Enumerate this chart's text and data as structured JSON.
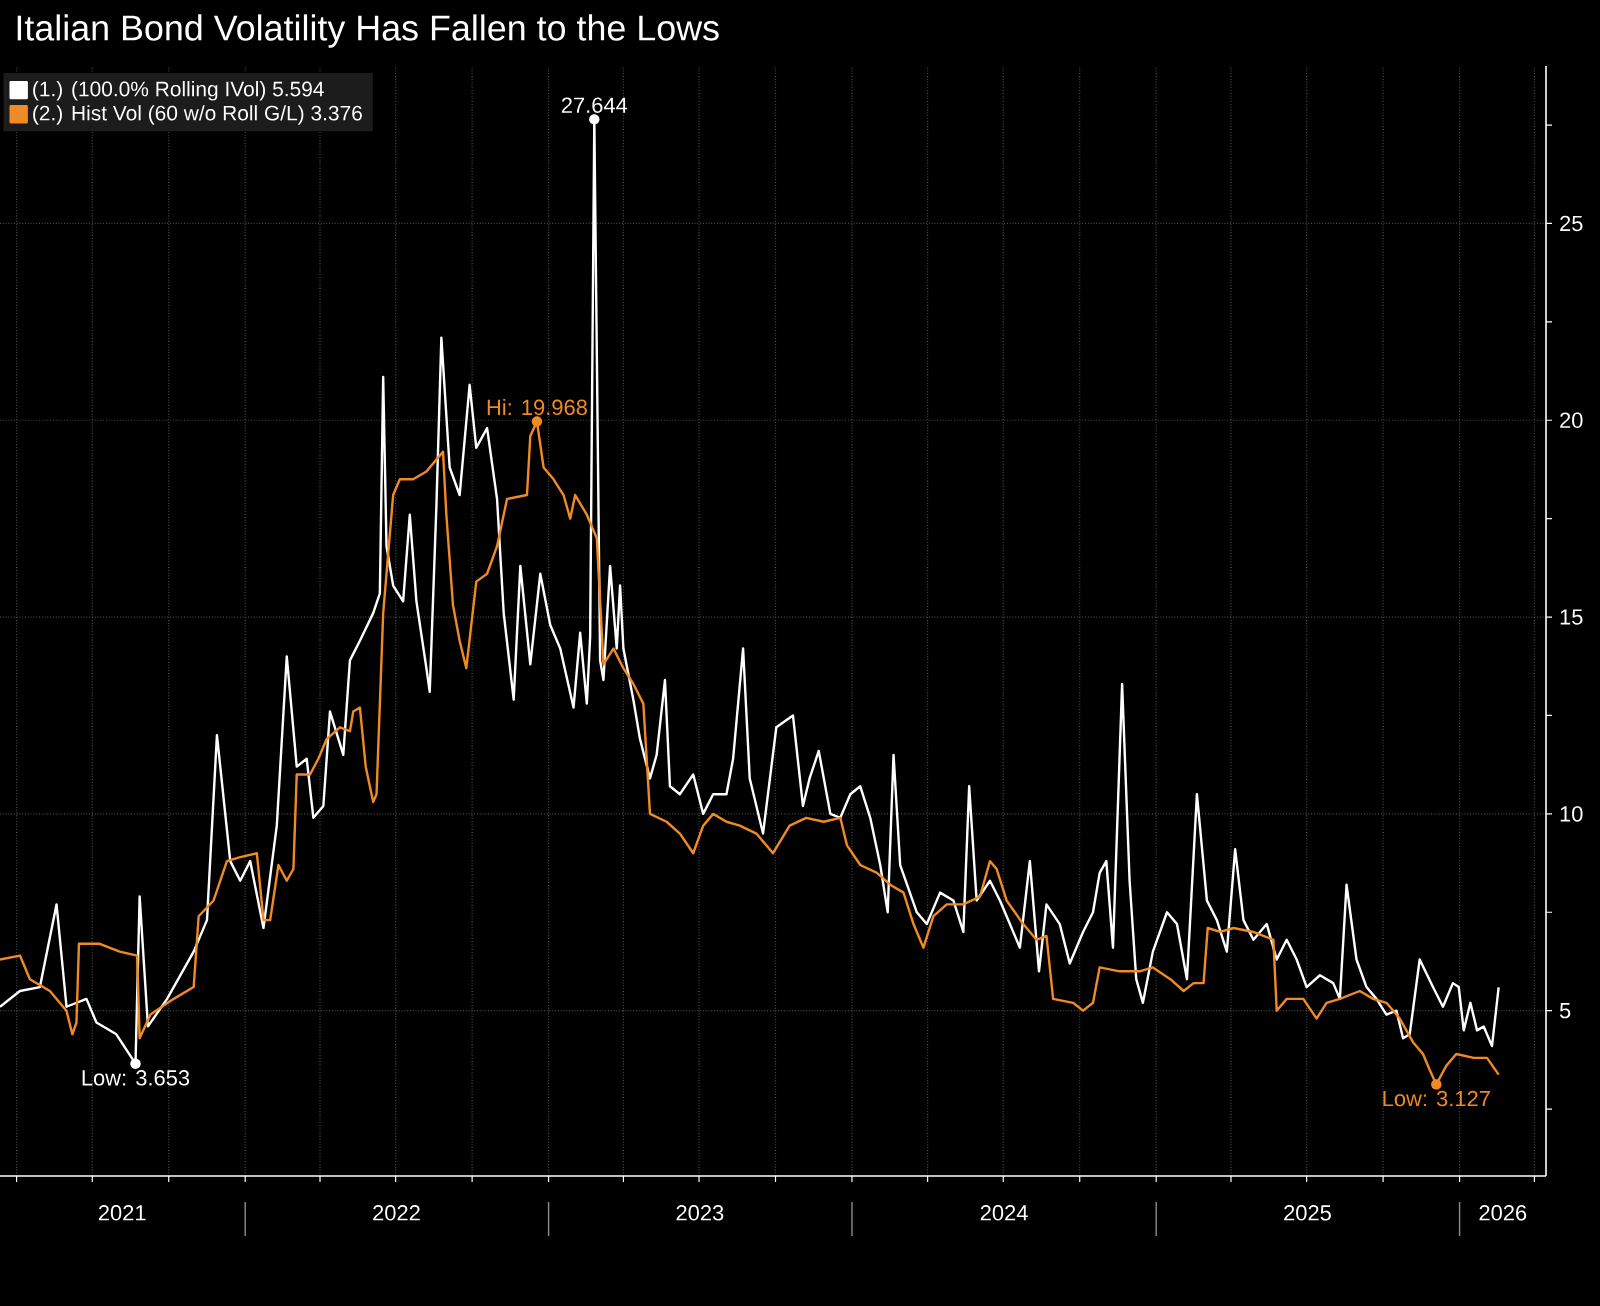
{
  "chart_data": {
    "type": "line",
    "title": "Italian Bond Volatility Has Fallen to the Lows",
    "series": [
      {
        "name": "(1.) (100.0% Rolling IVol) 5.594",
        "color": "#ffffff",
        "x": [
          "2021-03-12",
          "2021-04-05",
          "2021-04-29",
          "2021-05-19",
          "2021-05-31",
          "2021-06-24",
          "2021-07-06",
          "2021-07-30",
          "2021-08-22",
          "2021-08-27",
          "2021-09-06",
          "2021-09-29",
          "2021-10-31",
          "2021-11-16",
          "2021-11-28",
          "2021-12-14",
          "2021-12-26",
          "2022-01-07",
          "2022-01-23",
          "2022-02-08",
          "2022-02-20",
          "2022-03-04",
          "2022-03-16",
          "2022-03-24",
          "2022-04-05",
          "2022-04-13",
          "2022-04-29",
          "2022-05-07",
          "2022-05-19",
          "2022-06-04",
          "2022-06-12",
          "2022-06-16",
          "2022-06-20",
          "2022-06-28",
          "2022-07-10",
          "2022-07-18",
          "2022-07-26",
          "2022-08-07",
          "2022-08-11",
          "2022-08-19",
          "2022-08-25",
          "2022-09-04",
          "2022-09-16",
          "2022-09-28",
          "2022-10-06",
          "2022-10-19",
          "2022-10-31",
          "2022-11-08",
          "2022-11-20",
          "2022-11-28",
          "2022-12-10",
          "2022-12-22",
          "2023-01-03",
          "2023-01-15",
          "2023-01-31",
          "2023-02-08",
          "2023-02-16",
          "2023-02-20",
          "2023-02-25",
          "2023-03-04",
          "2023-03-08",
          "2023-03-16",
          "2023-03-24",
          "2023-03-28",
          "2023-04-01",
          "2023-04-13",
          "2023-04-21",
          "2023-05-03",
          "2023-05-11",
          "2023-05-21",
          "2023-05-27",
          "2023-06-08",
          "2023-06-24",
          "2023-07-06",
          "2023-07-18",
          "2023-08-03",
          "2023-08-11",
          "2023-08-23",
          "2023-08-31",
          "2023-09-16",
          "2023-10-02",
          "2023-10-22",
          "2023-11-03",
          "2023-11-11",
          "2023-11-22",
          "2023-12-06",
          "2023-12-18",
          "2023-12-30",
          "2024-01-11",
          "2024-01-23",
          "2024-02-04",
          "2024-02-13",
          "2024-02-20",
          "2024-02-28",
          "2024-03-19",
          "2024-03-31",
          "2024-04-16",
          "2024-05-02",
          "2024-05-14",
          "2024-05-21",
          "2024-05-30",
          "2024-06-15",
          "2024-06-27",
          "2024-07-09",
          "2024-07-21",
          "2024-08-02",
          "2024-08-13",
          "2024-08-22",
          "2024-09-07",
          "2024-09-19",
          "2024-10-05",
          "2024-10-17",
          "2024-10-25",
          "2024-11-02",
          "2024-11-10",
          "2024-11-21",
          "2024-11-30",
          "2024-12-08",
          "2024-12-16",
          "2024-12-28",
          "2025-01-14",
          "2025-01-26",
          "2025-02-07",
          "2025-02-19",
          "2025-03-03",
          "2025-03-15",
          "2025-03-27",
          "2025-04-06",
          "2025-04-16",
          "2025-04-28",
          "2025-05-14",
          "2025-05-26",
          "2025-06-07",
          "2025-06-19",
          "2025-07-01",
          "2025-07-17",
          "2025-08-02",
          "2025-08-10",
          "2025-08-18",
          "2025-08-30",
          "2025-09-11",
          "2025-09-23",
          "2025-10-05",
          "2025-10-17",
          "2025-10-25",
          "2025-11-02",
          "2025-11-14",
          "2025-11-30",
          "2025-12-12",
          "2025-12-24",
          "2025-12-31",
          "2026-01-06",
          "2026-01-14",
          "2026-01-22",
          "2026-01-30",
          "2026-02-09",
          "2026-02-17"
        ],
        "values": [
          5.1,
          5.5,
          5.6,
          7.7,
          5.1,
          5.3,
          4.7,
          4.4,
          3.653,
          7.9,
          4.6,
          5.3,
          6.5,
          7.3,
          12.0,
          8.8,
          8.3,
          8.8,
          7.1,
          9.7,
          14.0,
          11.2,
          11.4,
          9.9,
          10.2,
          12.6,
          11.5,
          13.9,
          14.4,
          15.1,
          15.6,
          21.1,
          16.8,
          15.8,
          15.4,
          17.6,
          15.4,
          13.7,
          13.1,
          17.8,
          22.1,
          18.8,
          18.1,
          20.9,
          19.3,
          19.8,
          18.0,
          15.1,
          12.9,
          16.3,
          13.8,
          16.1,
          14.8,
          14.2,
          12.7,
          14.6,
          12.8,
          14.5,
          27.644,
          13.9,
          13.4,
          16.3,
          14.2,
          15.8,
          14.2,
          12.9,
          11.9,
          10.9,
          11.5,
          13.4,
          10.7,
          10.5,
          11.0,
          10.0,
          10.5,
          10.5,
          11.4,
          14.2,
          10.9,
          9.5,
          12.2,
          12.5,
          10.2,
          10.9,
          11.6,
          10.0,
          9.9,
          10.5,
          10.7,
          9.9,
          8.7,
          7.5,
          11.5,
          8.7,
          7.5,
          7.2,
          8.0,
          7.8,
          7.0,
          10.7,
          7.8,
          8.3,
          7.8,
          7.2,
          6.6,
          8.8,
          6.0,
          7.7,
          7.2,
          6.2,
          7.0,
          7.5,
          8.5,
          8.8,
          6.6,
          13.3,
          8.3,
          5.8,
          5.2,
          6.5,
          7.5,
          7.2,
          5.8,
          10.5,
          7.8,
          7.3,
          6.5,
          9.1,
          7.3,
          6.8,
          7.2,
          6.3,
          6.8,
          6.3,
          5.6,
          5.9,
          5.7,
          5.3,
          8.2,
          6.3,
          5.6,
          5.3,
          4.9,
          5.0,
          4.3,
          4.4,
          6.3,
          5.6,
          5.1,
          5.7,
          5.6,
          4.5,
          5.2,
          4.5,
          4.6,
          4.1,
          5.594
        ]
      },
      {
        "name": "(2.) Hist Vol (60 w/o Roll G/L) 3.376",
        "color": "#f08a24",
        "x": [
          "2021-03-12",
          "2021-04-05",
          "2021-04-17",
          "2021-05-11",
          "2021-05-31",
          "2021-06-07",
          "2021-06-12",
          "2021-06-15",
          "2021-07-10",
          "2021-08-03",
          "2021-08-24",
          "2021-08-27",
          "2021-09-09",
          "2021-10-07",
          "2021-10-31",
          "2021-11-06",
          "2021-11-24",
          "2021-12-10",
          "2021-12-26",
          "2022-01-15",
          "2022-01-23",
          "2022-01-31",
          "2022-02-10",
          "2022-02-20",
          "2022-02-28",
          "2022-03-04",
          "2022-03-20",
          "2022-03-30",
          "2022-04-09",
          "2022-04-25",
          "2022-05-07",
          "2022-05-11",
          "2022-05-19",
          "2022-05-26",
          "2022-06-04",
          "2022-06-08",
          "2022-06-16",
          "2022-06-28",
          "2022-07-06",
          "2022-07-22",
          "2022-08-07",
          "2022-08-19",
          "2022-08-27",
          "2022-08-31",
          "2022-09-08",
          "2022-09-16",
          "2022-09-24",
          "2022-10-06",
          "2022-10-19",
          "2022-10-31",
          "2022-11-12",
          "2022-12-06",
          "2022-12-10",
          "2022-12-18",
          "2022-12-26",
          "2023-01-07",
          "2023-01-19",
          "2023-01-27",
          "2023-02-02",
          "2023-02-16",
          "2023-02-28",
          "2023-03-08",
          "2023-03-20",
          "2023-04-01",
          "2023-04-13",
          "2023-04-25",
          "2023-05-03",
          "2023-05-23",
          "2023-06-08",
          "2023-06-24",
          "2023-07-06",
          "2023-07-18",
          "2023-08-03",
          "2023-08-19",
          "2023-09-08",
          "2023-09-28",
          "2023-10-18",
          "2023-11-07",
          "2023-11-28",
          "2023-12-18",
          "2023-12-26",
          "2024-01-11",
          "2024-01-31",
          "2024-02-16",
          "2024-03-03",
          "2024-03-15",
          "2024-03-27",
          "2024-04-08",
          "2024-04-24",
          "2024-05-14",
          "2024-06-03",
          "2024-06-15",
          "2024-06-23",
          "2024-07-05",
          "2024-07-25",
          "2024-08-10",
          "2024-08-22",
          "2024-08-30",
          "2024-09-23",
          "2024-10-05",
          "2024-10-17",
          "2024-10-25",
          "2024-11-18",
          "2024-12-12",
          "2024-12-28",
          "2025-01-18",
          "2025-02-03",
          "2025-02-15",
          "2025-02-27",
          "2025-03-04",
          "2025-03-19",
          "2025-04-04",
          "2025-04-28",
          "2025-05-22",
          "2025-05-26",
          "2025-06-07",
          "2025-06-27",
          "2025-07-13",
          "2025-07-25",
          "2025-08-10",
          "2025-09-03",
          "2025-09-19",
          "2025-10-05",
          "2025-10-21",
          "2025-11-06",
          "2025-11-18",
          "2025-11-26",
          "2025-12-04",
          "2025-12-16",
          "2025-12-28",
          "2026-01-18",
          "2026-02-03",
          "2026-02-17"
        ],
        "values": [
          6.3,
          6.4,
          5.8,
          5.5,
          5.0,
          4.4,
          4.7,
          6.7,
          6.7,
          6.5,
          6.4,
          4.3,
          4.9,
          5.3,
          5.6,
          7.4,
          7.8,
          8.8,
          8.9,
          9.0,
          7.3,
          7.3,
          8.7,
          8.3,
          8.6,
          11.0,
          11.0,
          11.4,
          11.9,
          12.2,
          12.1,
          12.6,
          12.7,
          11.2,
          10.3,
          10.5,
          15.1,
          18.1,
          18.5,
          18.5,
          18.7,
          19.0,
          19.2,
          17.6,
          15.3,
          14.4,
          13.7,
          15.9,
          16.1,
          16.8,
          18.0,
          18.1,
          19.6,
          19.968,
          18.8,
          18.5,
          18.1,
          17.5,
          18.1,
          17.6,
          17.0,
          13.8,
          14.2,
          13.7,
          13.3,
          12.8,
          10.0,
          9.8,
          9.5,
          9.0,
          9.7,
          10.0,
          9.8,
          9.7,
          9.5,
          9.0,
          9.7,
          9.9,
          9.8,
          9.9,
          9.2,
          8.7,
          8.5,
          8.2,
          8.0,
          7.2,
          6.6,
          7.4,
          7.7,
          7.7,
          7.9,
          8.8,
          8.6,
          7.8,
          7.2,
          6.8,
          6.9,
          5.3,
          5.2,
          5.0,
          5.2,
          6.1,
          6.0,
          6.0,
          6.1,
          5.8,
          5.5,
          5.7,
          5.7,
          7.1,
          7.0,
          7.1,
          7.0,
          6.8,
          5.0,
          5.3,
          5.3,
          4.8,
          5.2,
          5.3,
          5.5,
          5.3,
          5.2,
          4.8,
          4.2,
          3.9,
          3.5,
          3.127,
          3.6,
          3.9,
          3.8,
          3.8,
          3.376
        ]
      }
    ],
    "xlim": [
      "2021-03-12",
      "2026-04-15"
    ],
    "ylim": [
      0.8,
      29
    ],
    "xticks": [
      {
        "value": "2021-04-01",
        "label": null
      },
      {
        "value": "2021-07-01",
        "label": null
      },
      {
        "value": "2021-08-06",
        "label": "2021"
      },
      {
        "value": "2021-10-01",
        "label": null
      },
      {
        "value": "2022-01-01",
        "label": null
      },
      {
        "value": "2022-04-01",
        "label": null
      },
      {
        "value": "2022-07-01",
        "label": null
      },
      {
        "value": "2022-07-02",
        "label": "2022"
      },
      {
        "value": "2022-10-01",
        "label": null
      },
      {
        "value": "2023-01-01",
        "label": null
      },
      {
        "value": "2023-04-01",
        "label": null
      },
      {
        "value": "2023-07-01",
        "label": null
      },
      {
        "value": "2023-07-02",
        "label": "2023"
      },
      {
        "value": "2023-10-01",
        "label": null
      },
      {
        "value": "2024-01-01",
        "label": null
      },
      {
        "value": "2024-04-01",
        "label": null
      },
      {
        "value": "2024-07-01",
        "label": null
      },
      {
        "value": "2024-07-02",
        "label": "2024"
      },
      {
        "value": "2024-10-01",
        "label": null
      },
      {
        "value": "2025-01-01",
        "label": null
      },
      {
        "value": "2025-04-01",
        "label": null
      },
      {
        "value": "2025-07-01",
        "label": null
      },
      {
        "value": "2025-07-02",
        "label": "2025"
      },
      {
        "value": "2025-10-01",
        "label": null
      },
      {
        "value": "2026-01-01",
        "label": null
      },
      {
        "value": "2026-02-22",
        "label": "2026"
      },
      {
        "value": "2026-04-01",
        "label": null
      }
    ],
    "yticks": [
      {
        "value": 2.5,
        "label": null
      },
      5,
      {
        "value": 7.5,
        "label": null
      },
      10,
      {
        "value": 12.5,
        "label": null
      },
      15,
      {
        "value": 17.5,
        "label": null
      },
      20,
      {
        "value": 22.5,
        "label": null
      },
      25,
      {
        "value": 27.5,
        "label": null
      }
    ],
    "grid": true,
    "legend": "top left",
    "annotations": [
      {
        "text": "Low: 3.653",
        "x": "2021-08-22",
        "y": 3.653
      },
      {
        "text": "Hi: 19.968",
        "x": "2022-12-18",
        "y": 19.968
      },
      {
        "text": "27.644",
        "x": "2023-02-25",
        "y": 27.644
      },
      {
        "text": "Low: 3.127",
        "x": "2025-12-04",
        "y": 3.127
      }
    ]
  }
}
